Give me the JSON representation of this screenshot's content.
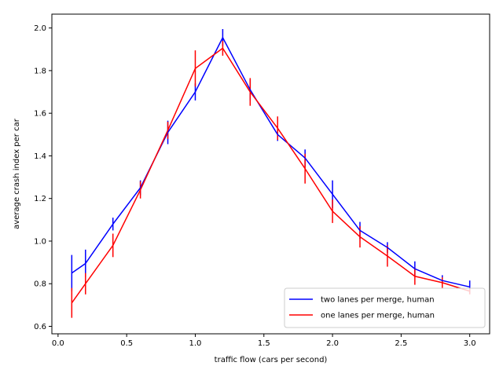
{
  "chart_data": {
    "type": "line",
    "title": "",
    "xlabel": "traffic flow (cars per second)",
    "ylabel": "average crash index per car",
    "xlim": [
      -0.045,
      3.145
    ],
    "ylim": [
      0.565,
      2.065
    ],
    "xticks": [
      0.0,
      0.5,
      1.0,
      1.5,
      2.0,
      2.5,
      3.0
    ],
    "xtick_labels": [
      "0.0",
      "0.5",
      "1.0",
      "1.5",
      "2.0",
      "2.5",
      "3.0"
    ],
    "yticks": [
      0.6,
      0.8,
      1.0,
      1.2,
      1.4,
      1.6,
      1.8,
      2.0
    ],
    "ytick_labels": [
      "0.6",
      "0.8",
      "1.0",
      "1.2",
      "1.4",
      "1.6",
      "1.8",
      "2.0"
    ],
    "grid": false,
    "legend_position": "bottom-right",
    "x": [
      0.1,
      0.2,
      0.4,
      0.6,
      0.8,
      1.0,
      1.2,
      1.4,
      1.6,
      1.8,
      2.0,
      2.2,
      2.4,
      2.6,
      2.8,
      3.0
    ],
    "series": [
      {
        "name": "two lanes per merge, human",
        "color": "#0000ff",
        "values": [
          0.85,
          0.895,
          1.08,
          1.25,
          1.51,
          1.7,
          1.955,
          1.71,
          1.5,
          1.39,
          1.22,
          1.05,
          0.97,
          0.87,
          0.815,
          0.785
        ],
        "errors": [
          0.085,
          0.065,
          0.03,
          0.035,
          0.055,
          0.04,
          0.04,
          0.05,
          0.03,
          0.04,
          0.065,
          0.04,
          0.025,
          0.035,
          0.025,
          0.03
        ]
      },
      {
        "name": "one lanes per merge, human",
        "color": "#ff0000",
        "values": [
          0.71,
          0.8,
          0.98,
          1.24,
          1.52,
          1.81,
          1.905,
          1.7,
          1.53,
          1.34,
          1.14,
          1.02,
          0.93,
          0.835,
          0.805,
          0.765
        ],
        "errors": [
          0.07,
          0.05,
          0.055,
          0.04,
          0.04,
          0.085,
          0.035,
          0.065,
          0.055,
          0.07,
          0.055,
          0.05,
          0.05,
          0.04,
          0.025,
          0.015
        ]
      }
    ]
  }
}
